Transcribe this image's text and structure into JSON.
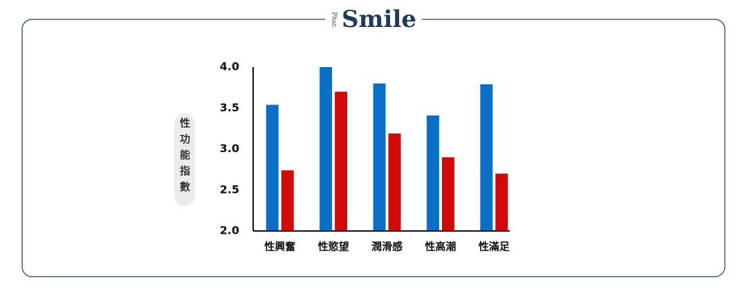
{
  "brand": {
    "prefix": "Phar.",
    "name": "Smile"
  },
  "chart_data": {
    "type": "bar",
    "y_label": "性功能指數",
    "categories": [
      "性興奮",
      "性慾望",
      "潤滑感",
      "性高潮",
      "性滿足"
    ],
    "series": [
      {
        "color": "#0a6fc4",
        "values": [
          3.54,
          4.0,
          3.8,
          3.41,
          3.79
        ]
      },
      {
        "color": "#d00a0a",
        "values": [
          2.74,
          3.7,
          3.19,
          2.9,
          2.7
        ]
      }
    ],
    "ylim": [
      2,
      4
    ],
    "yticks": [
      {
        "value": 2,
        "label": "2.0"
      },
      {
        "value": 2.5,
        "label": "2.5"
      },
      {
        "value": 3,
        "label": "3.0"
      },
      {
        "value": 3.5,
        "label": "3.5"
      },
      {
        "value": 4,
        "label": "4.0"
      }
    ],
    "grid": false
  }
}
